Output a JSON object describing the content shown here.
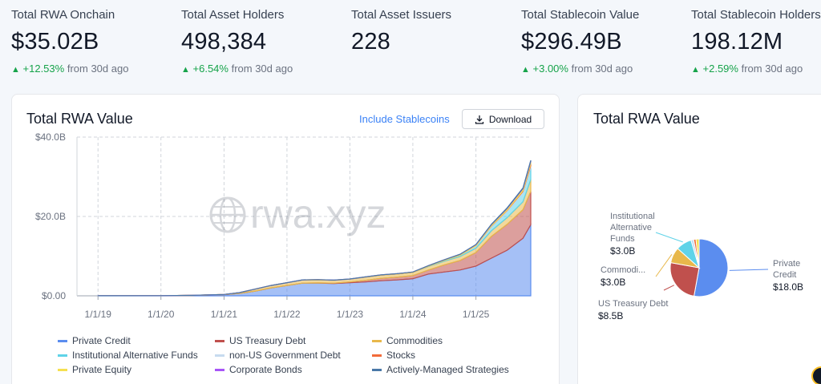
{
  "stats": [
    {
      "label": "Total RWA Onchain",
      "value": "$35.02B",
      "change": "+12.53%",
      "suffix": "from 30d ago"
    },
    {
      "label": "Total Asset Holders",
      "value": "498,384",
      "change": "+6.54%",
      "suffix": "from 30d ago"
    },
    {
      "label": "Total Asset Issuers",
      "value": "228",
      "change": "",
      "suffix": ""
    },
    {
      "label": "Total Stablecoin Value",
      "value": "$296.49B",
      "change": "+3.00%",
      "suffix": "from 30d ago"
    },
    {
      "label": "Total Stablecoin Holders",
      "value": "198.12M",
      "change": "+2.59%",
      "suffix": "from 30d ago"
    }
  ],
  "main_card": {
    "title": "Total RWA Value",
    "toggle_label": "Include Stablecoins",
    "download_label": "Download",
    "watermark": "rwa.xyz"
  },
  "pie_card": {
    "title": "Total RWA Value"
  },
  "icons": {
    "download": "download-icon",
    "arrow_up": "arrow-up-icon",
    "watermark_logo": "globe-icon"
  },
  "chart_data": [
    {
      "type": "area",
      "stacked": true,
      "title": "Total RWA Value",
      "x_ticks": [
        "1/1/19",
        "1/1/20",
        "1/1/21",
        "1/1/22",
        "1/1/23",
        "1/1/24",
        "1/1/25"
      ],
      "y_ticks": [
        "$0.00",
        "$20.0B",
        "$40.0B"
      ],
      "ylim": [
        0,
        40
      ],
      "grid": true,
      "legend_position": "bottom",
      "x": [
        "2019-01-01",
        "2020-01-01",
        "2020-07-01",
        "2021-01-01",
        "2021-04-01",
        "2021-07-01",
        "2021-10-01",
        "2022-01-01",
        "2022-04-01",
        "2022-07-01",
        "2022-10-01",
        "2023-01-01",
        "2023-04-01",
        "2023-07-01",
        "2023-10-01",
        "2024-01-01",
        "2024-04-01",
        "2024-07-01",
        "2024-10-01",
        "2025-01-01",
        "2025-04-01",
        "2025-07-01",
        "2025-10-01",
        "2025-11-15"
      ],
      "series": [
        {
          "name": "Private Credit",
          "color": "#5b8def",
          "values": [
            0.02,
            0.05,
            0.1,
            0.3,
            0.6,
            1.2,
            2.0,
            2.6,
            3.2,
            3.2,
            3.1,
            3.3,
            3.5,
            3.8,
            4.0,
            4.3,
            5.5,
            6.0,
            6.5,
            7.5,
            9.5,
            11.5,
            14.5,
            17.9
          ]
        },
        {
          "name": "US Treasury Debt",
          "color": "#c0504d",
          "values": [
            0,
            0,
            0,
            0,
            0,
            0,
            0,
            0,
            0,
            0.05,
            0.1,
            0.2,
            0.4,
            0.6,
            0.7,
            0.8,
            1.0,
            1.8,
            2.4,
            3.4,
            5.5,
            6.5,
            7.2,
            8.4
          ]
        },
        {
          "name": "Commodities",
          "color": "#e8b84b",
          "values": [
            0,
            0,
            0.02,
            0.05,
            0.2,
            0.5,
            0.6,
            0.7,
            0.8,
            0.8,
            0.7,
            0.7,
            0.8,
            0.8,
            0.8,
            0.8,
            0.9,
            0.9,
            1.0,
            1.1,
            1.4,
            1.7,
            2.0,
            3.0
          ]
        },
        {
          "name": "Institutional Alternative Funds",
          "color": "#5fd3e8",
          "values": [
            0,
            0,
            0,
            0,
            0,
            0,
            0,
            0,
            0,
            0,
            0,
            0,
            0,
            0,
            0,
            0,
            0.1,
            0.2,
            0.3,
            0.5,
            1.0,
            1.5,
            2.2,
            3.0
          ]
        },
        {
          "name": "non-US Government Debt",
          "color": "#c7dbef",
          "values": [
            0,
            0,
            0,
            0,
            0,
            0,
            0,
            0,
            0,
            0,
            0,
            0,
            0,
            0,
            0,
            0,
            0,
            0.02,
            0.05,
            0.1,
            0.2,
            0.3,
            0.4,
            0.5
          ]
        },
        {
          "name": "Stocks",
          "color": "#f26b3a",
          "values": [
            0,
            0,
            0,
            0,
            0,
            0,
            0,
            0,
            0,
            0,
            0,
            0,
            0,
            0,
            0,
            0,
            0,
            0,
            0,
            0.02,
            0.05,
            0.1,
            0.2,
            0.45
          ]
        },
        {
          "name": "Private Equity",
          "color": "#f5e050",
          "values": [
            0,
            0,
            0,
            0,
            0,
            0,
            0,
            0.02,
            0.03,
            0.04,
            0.05,
            0.05,
            0.06,
            0.07,
            0.08,
            0.1,
            0.12,
            0.15,
            0.2,
            0.25,
            0.3,
            0.4,
            0.5,
            0.6
          ]
        },
        {
          "name": "Corporate Bonds",
          "color": "#a855f7",
          "values": [
            0,
            0,
            0,
            0,
            0,
            0,
            0,
            0,
            0,
            0,
            0,
            0,
            0,
            0,
            0,
            0,
            0,
            0,
            0.02,
            0.04,
            0.06,
            0.08,
            0.1,
            0.15
          ]
        },
        {
          "name": "Actively-Managed Strategies",
          "color": "#4a78a8",
          "values": [
            0,
            0,
            0,
            0,
            0,
            0,
            0,
            0,
            0,
            0,
            0,
            0,
            0,
            0,
            0,
            0,
            0,
            0,
            0.01,
            0.02,
            0.05,
            0.08,
            0.1,
            0.15
          ]
        }
      ]
    },
    {
      "type": "pie",
      "title": "Total RWA Value",
      "slices": [
        {
          "name": "Private Credit",
          "label_lines": [
            "Private",
            "Credit"
          ],
          "value": 18.0,
          "display": "$18.0B",
          "color": "#5b8def"
        },
        {
          "name": "US Treasury Debt",
          "label_lines": [
            "US Treasury Debt"
          ],
          "value": 8.5,
          "display": "$8.5B",
          "color": "#c0504d"
        },
        {
          "name": "Commodities",
          "label_lines": [
            "Commodi..."
          ],
          "value": 3.0,
          "display": "$3.0B",
          "color": "#e8b84b"
        },
        {
          "name": "Institutional Alternative Funds",
          "label_lines": [
            "Institutional",
            "Alternative",
            "Funds"
          ],
          "value": 3.0,
          "display": "$3.0B",
          "color": "#5fd3e8"
        },
        {
          "name": "non-US Government Debt",
          "label_lines": [],
          "value": 0.5,
          "display": "",
          "color": "#c7dbef"
        },
        {
          "name": "Stocks",
          "label_lines": [],
          "value": 0.45,
          "display": "",
          "color": "#f26b3a"
        },
        {
          "name": "Private Equity",
          "label_lines": [],
          "value": 0.6,
          "display": "",
          "color": "#f5e050"
        }
      ]
    }
  ]
}
